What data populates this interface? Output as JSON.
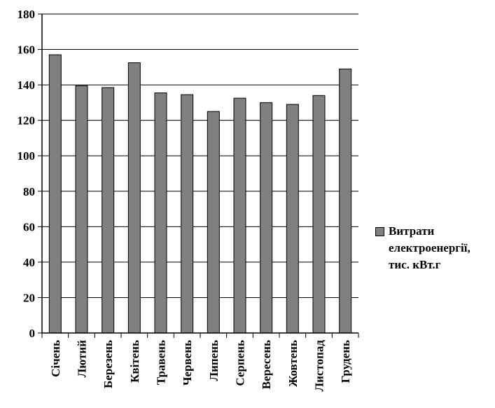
{
  "chart_data": {
    "type": "bar",
    "categories": [
      "Січень",
      "Лютий",
      "Березень",
      "Квітень",
      "Травень",
      "Червень",
      "Липень",
      "Серпень",
      "Вересень",
      "Жовтень",
      "Листопад",
      "Грудень"
    ],
    "series": [
      {
        "name": "Витрати електроенергії, тис. кВт.г",
        "values": [
          157,
          139.5,
          138.5,
          152.5,
          135.5,
          134.5,
          125,
          132.5,
          130,
          129,
          134,
          149
        ],
        "color": "#808080"
      }
    ],
    "title": "",
    "xlabel": "",
    "ylabel": "",
    "ylim": [
      0,
      180
    ],
    "yticks": [
      0,
      20,
      40,
      60,
      80,
      100,
      120,
      140,
      160,
      180
    ],
    "grid": true,
    "legend_position": "right"
  }
}
